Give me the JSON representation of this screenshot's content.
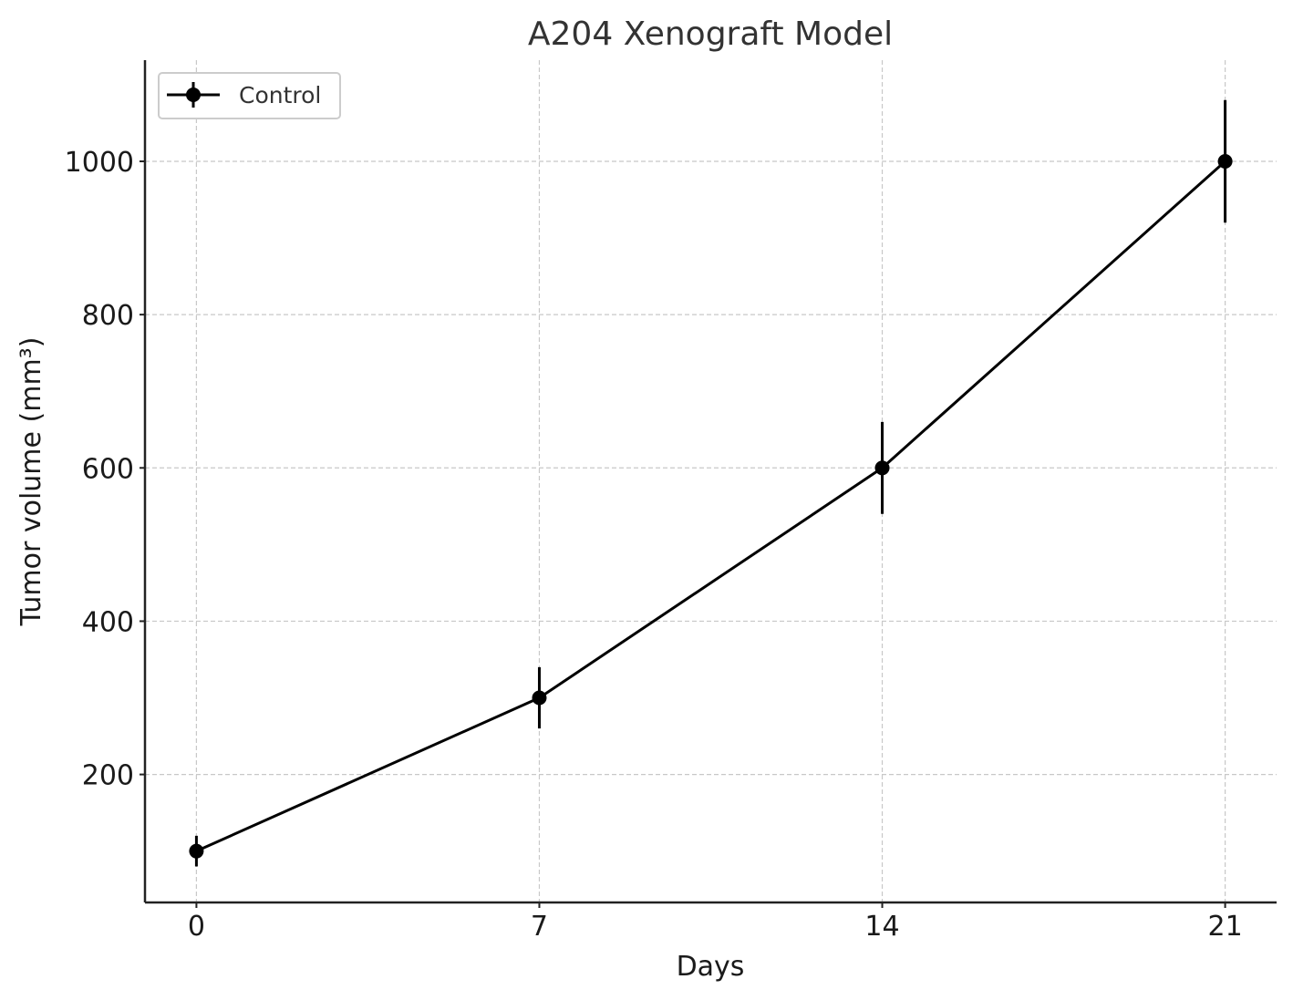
{
  "chart_data": {
    "type": "line",
    "title": "A204 Xenograft Model",
    "xlabel": "Days",
    "ylabel": "Tumor volume (mm³)",
    "x": [
      0,
      7,
      14,
      21
    ],
    "x_ticks": [
      "0",
      "7",
      "14",
      "21"
    ],
    "y_ticks": [
      200,
      400,
      600,
      800,
      1000
    ],
    "xlim": [
      -1.05,
      22.05
    ],
    "ylim": [
      33,
      1132
    ],
    "grid": true,
    "legend_position": "top-left",
    "series": [
      {
        "name": "Control",
        "color": "#000000",
        "values": [
          100,
          300,
          600,
          1000
        ],
        "errors": [
          20,
          40,
          60,
          80
        ]
      }
    ]
  }
}
